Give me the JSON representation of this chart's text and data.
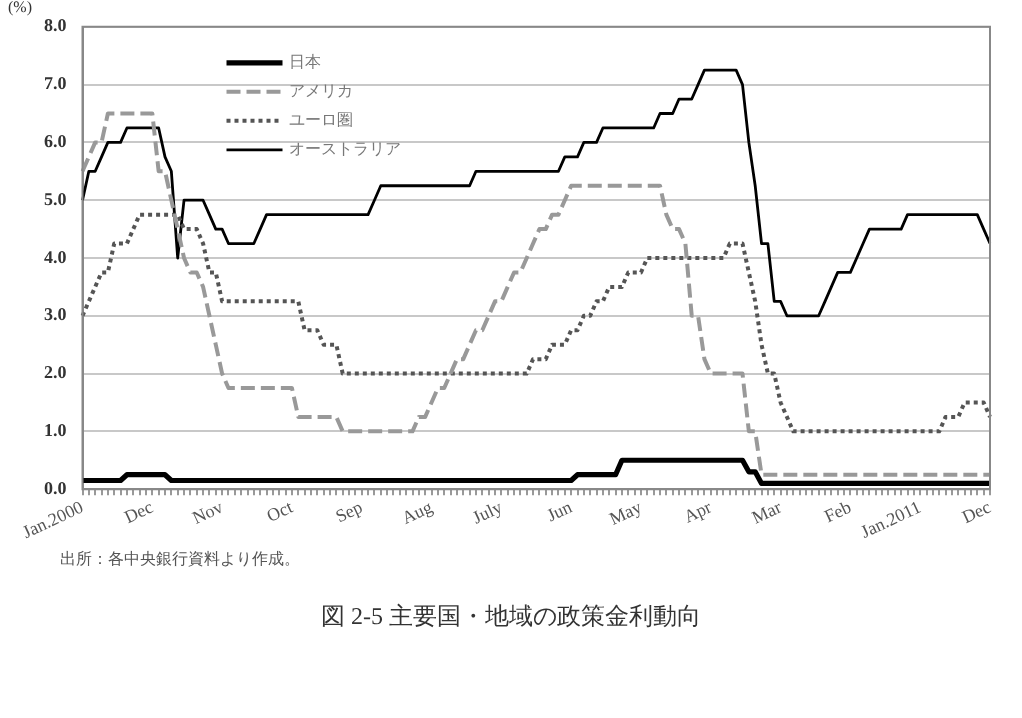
{
  "chart_data": {
    "type": "line",
    "title": "図 2-5 主要国・地域の政策金利動向",
    "ylabel": "(%)",
    "annotations": [
      "出所：各中央銀行資料より作成。"
    ],
    "categories": [
      "Jan.2000",
      null,
      null,
      null,
      null,
      null,
      null,
      null,
      null,
      null,
      null,
      "Dec",
      null,
      null,
      null,
      null,
      null,
      null,
      null,
      null,
      null,
      null,
      "Nov",
      null,
      null,
      null,
      null,
      null,
      null,
      null,
      null,
      null,
      null,
      "Oct",
      null,
      null,
      null,
      null,
      null,
      null,
      null,
      null,
      null,
      null,
      "Sep",
      null,
      null,
      null,
      null,
      null,
      null,
      null,
      null,
      null,
      null,
      "Aug",
      null,
      null,
      null,
      null,
      null,
      null,
      null,
      null,
      null,
      null,
      "July",
      null,
      null,
      null,
      null,
      null,
      null,
      null,
      null,
      null,
      null,
      "Jun",
      null,
      null,
      null,
      null,
      null,
      null,
      null,
      null,
      null,
      null,
      "May",
      null,
      null,
      null,
      null,
      null,
      null,
      null,
      null,
      null,
      null,
      "Apr",
      null,
      null,
      null,
      null,
      null,
      null,
      null,
      null,
      null,
      null,
      "Mar",
      null,
      null,
      null,
      null,
      null,
      null,
      null,
      null,
      null,
      null,
      "Feb",
      null,
      null,
      null,
      null,
      null,
      null,
      null,
      null,
      null,
      null,
      "Jan.2011",
      null,
      null,
      null,
      null,
      null,
      null,
      null,
      null,
      null,
      null,
      "Dec"
    ],
    "ylim": [
      0,
      8
    ],
    "yticks": [
      {
        "value": 0,
        "label": "0.0"
      },
      {
        "value": 1,
        "label": "1.0"
      },
      {
        "value": 2,
        "label": "2.0"
      },
      {
        "value": 3,
        "label": "3.0"
      },
      {
        "value": 4,
        "label": "4.0"
      },
      {
        "value": 5,
        "label": "5.0"
      },
      {
        "value": 6,
        "label": "6.0"
      },
      {
        "value": 7,
        "label": "7.0"
      },
      {
        "value": 8,
        "label": "8.0"
      }
    ],
    "grid": "y",
    "legend": "top left",
    "marker": "none",
    "series": [
      {
        "name": "日本",
        "color": "#000000",
        "line_style": "solid",
        "values": [
          0.15,
          0.15,
          0.15,
          0.15,
          0.15,
          0.15,
          0.15,
          0.25,
          0.25,
          0.25,
          0.25,
          0.25,
          0.25,
          0.25,
          0.15,
          0.15,
          0.15,
          0.15,
          0.15,
          0.15,
          0.15,
          0.15,
          0.15,
          0.15,
          0.15,
          0.15,
          0.15,
          0.15,
          0.15,
          0.15,
          0.15,
          0.15,
          0.15,
          0.15,
          0.15,
          0.15,
          0.15,
          0.15,
          0.15,
          0.15,
          0.15,
          0.15,
          0.15,
          0.15,
          0.15,
          0.15,
          0.15,
          0.15,
          0.15,
          0.15,
          0.15,
          0.15,
          0.15,
          0.15,
          0.15,
          0.15,
          0.15,
          0.15,
          0.15,
          0.15,
          0.15,
          0.15,
          0.15,
          0.15,
          0.15,
          0.15,
          0.15,
          0.15,
          0.15,
          0.15,
          0.15,
          0.15,
          0.15,
          0.15,
          0.15,
          0.15,
          0.15,
          0.15,
          0.25,
          0.25,
          0.25,
          0.25,
          0.25,
          0.25,
          0.25,
          0.5,
          0.5,
          0.5,
          0.5,
          0.5,
          0.5,
          0.5,
          0.5,
          0.5,
          0.5,
          0.5,
          0.5,
          0.5,
          0.5,
          0.5,
          0.5,
          0.5,
          0.5,
          0.5,
          0.5,
          0.3,
          0.3,
          0.1,
          0.1,
          0.1,
          0.1,
          0.1,
          0.1,
          0.1,
          0.1,
          0.1,
          0.1,
          0.1,
          0.1,
          0.1,
          0.1,
          0.1,
          0.1,
          0.1,
          0.1,
          0.1,
          0.1,
          0.1,
          0.1,
          0.1,
          0.1,
          0.1,
          0.1,
          0.1,
          0.1,
          0.1,
          0.1,
          0.1,
          0.1,
          0.1,
          0.1,
          0.1,
          0.1,
          0.1
        ]
      },
      {
        "name": "アメリカ",
        "color": "#999999",
        "line_style": "dashed",
        "values": [
          5.5,
          5.75,
          6.0,
          6.0,
          6.5,
          6.5,
          6.5,
          6.5,
          6.5,
          6.5,
          6.5,
          6.5,
          5.5,
          5.5,
          5.0,
          4.5,
          4.0,
          3.75,
          3.75,
          3.5,
          3.0,
          2.5,
          2.0,
          1.75,
          1.75,
          1.75,
          1.75,
          1.75,
          1.75,
          1.75,
          1.75,
          1.75,
          1.75,
          1.75,
          1.25,
          1.25,
          1.25,
          1.25,
          1.25,
          1.25,
          1.25,
          1.0,
          1.0,
          1.0,
          1.0,
          1.0,
          1.0,
          1.0,
          1.0,
          1.0,
          1.0,
          1.0,
          1.0,
          1.25,
          1.25,
          1.5,
          1.75,
          1.75,
          2.0,
          2.25,
          2.25,
          2.5,
          2.75,
          2.75,
          3.0,
          3.25,
          3.25,
          3.5,
          3.75,
          3.75,
          4.0,
          4.25,
          4.5,
          4.5,
          4.75,
          4.75,
          5.0,
          5.25,
          5.25,
          5.25,
          5.25,
          5.25,
          5.25,
          5.25,
          5.25,
          5.25,
          5.25,
          5.25,
          5.25,
          5.25,
          5.25,
          5.25,
          4.75,
          4.5,
          4.5,
          4.25,
          3.0,
          3.0,
          2.25,
          2.0,
          2.0,
          2.0,
          2.0,
          2.0,
          2.0,
          1.0,
          1.0,
          0.25,
          0.25,
          0.25,
          0.25,
          0.25,
          0.25,
          0.25,
          0.25,
          0.25,
          0.25,
          0.25,
          0.25,
          0.25,
          0.25,
          0.25,
          0.25,
          0.25,
          0.25,
          0.25,
          0.25,
          0.25,
          0.25,
          0.25,
          0.25,
          0.25,
          0.25,
          0.25,
          0.25,
          0.25,
          0.25,
          0.25,
          0.25,
          0.25,
          0.25,
          0.25,
          0.25,
          0.25
        ]
      },
      {
        "name": "ユーロ圏",
        "color": "#555555",
        "line_style": "dotted",
        "values": [
          3.0,
          3.25,
          3.5,
          3.75,
          3.75,
          4.25,
          4.25,
          4.25,
          4.5,
          4.75,
          4.75,
          4.75,
          4.75,
          4.75,
          4.75,
          4.75,
          4.5,
          4.5,
          4.5,
          4.25,
          3.75,
          3.75,
          3.25,
          3.25,
          3.25,
          3.25,
          3.25,
          3.25,
          3.25,
          3.25,
          3.25,
          3.25,
          3.25,
          3.25,
          3.25,
          2.75,
          2.75,
          2.75,
          2.5,
          2.5,
          2.5,
          2.0,
          2.0,
          2.0,
          2.0,
          2.0,
          2.0,
          2.0,
          2.0,
          2.0,
          2.0,
          2.0,
          2.0,
          2.0,
          2.0,
          2.0,
          2.0,
          2.0,
          2.0,
          2.0,
          2.0,
          2.0,
          2.0,
          2.0,
          2.0,
          2.0,
          2.0,
          2.0,
          2.0,
          2.0,
          2.0,
          2.25,
          2.25,
          2.25,
          2.5,
          2.5,
          2.5,
          2.75,
          2.75,
          3.0,
          3.0,
          3.25,
          3.25,
          3.5,
          3.5,
          3.5,
          3.75,
          3.75,
          3.75,
          4.0,
          4.0,
          4.0,
          4.0,
          4.0,
          4.0,
          4.0,
          4.0,
          4.0,
          4.0,
          4.0,
          4.0,
          4.0,
          4.25,
          4.25,
          4.25,
          3.75,
          3.25,
          2.5,
          2.0,
          2.0,
          1.5,
          1.25,
          1.0,
          1.0,
          1.0,
          1.0,
          1.0,
          1.0,
          1.0,
          1.0,
          1.0,
          1.0,
          1.0,
          1.0,
          1.0,
          1.0,
          1.0,
          1.0,
          1.0,
          1.0,
          1.0,
          1.0,
          1.0,
          1.0,
          1.0,
          1.0,
          1.25,
          1.25,
          1.25,
          1.5,
          1.5,
          1.5,
          1.5,
          1.25
        ]
      },
      {
        "name": "オーストラリア",
        "color": "#000000",
        "line_style": "solid",
        "values": [
          5.0,
          5.5,
          5.5,
          5.75,
          6.0,
          6.0,
          6.0,
          6.25,
          6.25,
          6.25,
          6.25,
          6.25,
          6.25,
          5.75,
          5.5,
          4.0,
          5.0,
          5.0,
          5.0,
          5.0,
          4.75,
          4.5,
          4.5,
          4.25,
          4.25,
          4.25,
          4.25,
          4.25,
          4.5,
          4.75,
          4.75,
          4.75,
          4.75,
          4.75,
          4.75,
          4.75,
          4.75,
          4.75,
          4.75,
          4.75,
          4.75,
          4.75,
          4.75,
          4.75,
          4.75,
          4.75,
          5.0,
          5.25,
          5.25,
          5.25,
          5.25,
          5.25,
          5.25,
          5.25,
          5.25,
          5.25,
          5.25,
          5.25,
          5.25,
          5.25,
          5.25,
          5.25,
          5.5,
          5.5,
          5.5,
          5.5,
          5.5,
          5.5,
          5.5,
          5.5,
          5.5,
          5.5,
          5.5,
          5.5,
          5.5,
          5.5,
          5.75,
          5.75,
          5.75,
          6.0,
          6.0,
          6.0,
          6.25,
          6.25,
          6.25,
          6.25,
          6.25,
          6.25,
          6.25,
          6.25,
          6.25,
          6.5,
          6.5,
          6.5,
          6.75,
          6.75,
          6.75,
          7.0,
          7.25,
          7.25,
          7.25,
          7.25,
          7.25,
          7.25,
          7.0,
          6.0,
          5.25,
          4.25,
          4.25,
          3.25,
          3.25,
          3.0,
          3.0,
          3.0,
          3.0,
          3.0,
          3.0,
          3.25,
          3.5,
          3.75,
          3.75,
          3.75,
          4.0,
          4.25,
          4.5,
          4.5,
          4.5,
          4.5,
          4.5,
          4.5,
          4.75,
          4.75,
          4.75,
          4.75,
          4.75,
          4.75,
          4.75,
          4.75,
          4.75,
          4.75,
          4.75,
          4.75,
          4.5,
          4.25
        ]
      }
    ]
  }
}
